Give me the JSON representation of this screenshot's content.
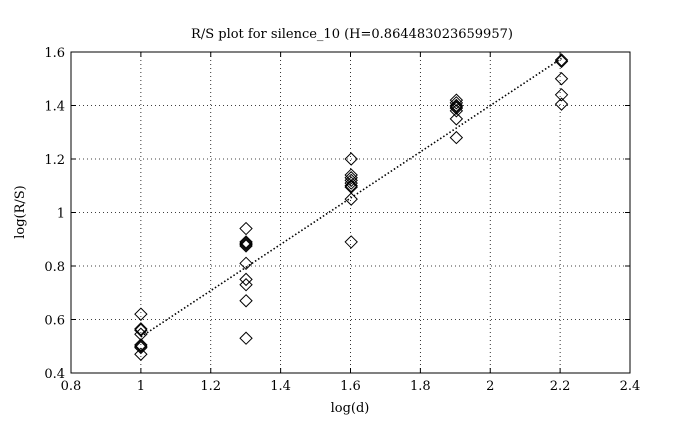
{
  "chart_data": {
    "type": "scatter",
    "title": "R/S plot for silence_10 (H=0.864483023659957)",
    "xlabel": "log(d)",
    "ylabel": "log(R/S)",
    "xlim": [
      0.8,
      2.4
    ],
    "ylim": [
      0.4,
      1.6
    ],
    "xticks": [
      "0.8",
      "1",
      "1.2",
      "1.4",
      "1.6",
      "1.8",
      "2",
      "2.2",
      "2.4"
    ],
    "yticks": [
      "0.4",
      "0.6",
      "0.8",
      "1",
      "1.2",
      "1.4",
      "1.6"
    ],
    "grid": true,
    "marker": "diamond",
    "color": "#000000",
    "points": [
      {
        "x": 1.0,
        "y": 0.62
      },
      {
        "x": 1.0,
        "y": 0.565
      },
      {
        "x": 1.0,
        "y": 0.56
      },
      {
        "x": 1.0,
        "y": 0.545
      },
      {
        "x": 1.0,
        "y": 0.505
      },
      {
        "x": 1.0,
        "y": 0.5
      },
      {
        "x": 1.0,
        "y": 0.495
      },
      {
        "x": 1.0,
        "y": 0.47
      },
      {
        "x": 1.301,
        "y": 0.94
      },
      {
        "x": 1.301,
        "y": 0.89
      },
      {
        "x": 1.301,
        "y": 0.885
      },
      {
        "x": 1.301,
        "y": 0.88
      },
      {
        "x": 1.301,
        "y": 0.875
      },
      {
        "x": 1.301,
        "y": 0.81
      },
      {
        "x": 1.301,
        "y": 0.75
      },
      {
        "x": 1.301,
        "y": 0.73
      },
      {
        "x": 1.301,
        "y": 0.67
      },
      {
        "x": 1.301,
        "y": 0.53
      },
      {
        "x": 1.602,
        "y": 1.2
      },
      {
        "x": 1.602,
        "y": 1.14
      },
      {
        "x": 1.602,
        "y": 1.13
      },
      {
        "x": 1.602,
        "y": 1.12
      },
      {
        "x": 1.602,
        "y": 1.11
      },
      {
        "x": 1.602,
        "y": 1.1
      },
      {
        "x": 1.602,
        "y": 1.095
      },
      {
        "x": 1.602,
        "y": 1.05
      },
      {
        "x": 1.602,
        "y": 0.89
      },
      {
        "x": 1.903,
        "y": 1.42
      },
      {
        "x": 1.903,
        "y": 1.41
      },
      {
        "x": 1.903,
        "y": 1.4
      },
      {
        "x": 1.903,
        "y": 1.395
      },
      {
        "x": 1.903,
        "y": 1.39
      },
      {
        "x": 1.903,
        "y": 1.38
      },
      {
        "x": 1.903,
        "y": 1.35
      },
      {
        "x": 1.903,
        "y": 1.28
      },
      {
        "x": 2.204,
        "y": 1.57
      },
      {
        "x": 2.204,
        "y": 1.565
      },
      {
        "x": 2.204,
        "y": 1.5
      },
      {
        "x": 2.204,
        "y": 1.44
      },
      {
        "x": 2.204,
        "y": 1.405
      }
    ],
    "fit_line": {
      "style": "dotted",
      "x": [
        1.0,
        2.204
      ],
      "y": [
        0.535,
        1.576
      ]
    }
  }
}
